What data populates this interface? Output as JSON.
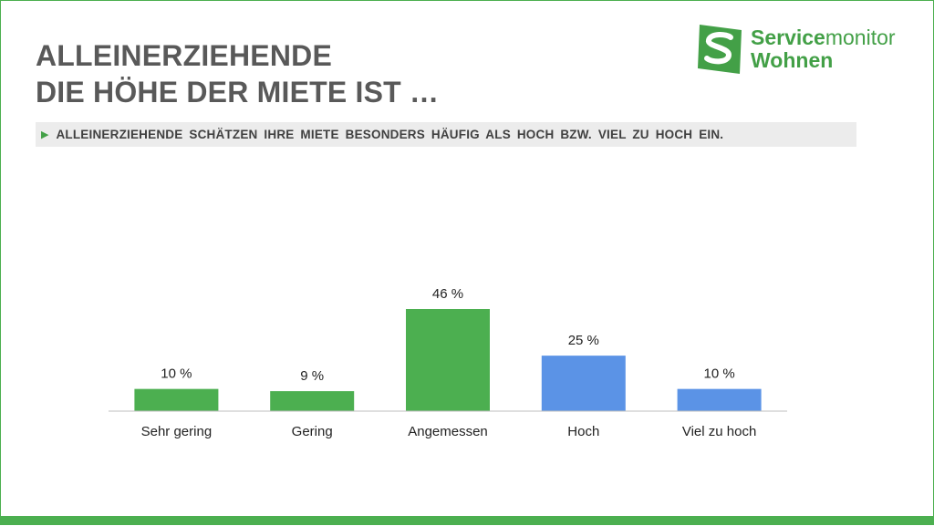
{
  "slide": {
    "title_line1": "ALLEINERZIEHENDE",
    "title_line2": "DIE HÖHE DER MIETE IST …",
    "subtitle": "ALLEINERZIEHENDE SCHÄTZEN IHRE MIETE BESONDERS HÄUFIG ALS HOCH BZW. VIEL ZU HOCH EIN.",
    "subtitle_icon": "triangle-right-icon"
  },
  "logo": {
    "word_bold": "Service",
    "word_light": "monitor",
    "word_line2": "Wohnen",
    "mark": "s-logo-icon",
    "color": "#43a047"
  },
  "chart_data": {
    "type": "bar",
    "categories": [
      "Sehr gering",
      "Gering",
      "Angemessen",
      "Hoch",
      "Viel zu hoch"
    ],
    "values": [
      10,
      9,
      46,
      25,
      10
    ],
    "data_labels": [
      "10 %",
      "9 %",
      "46 %",
      "25 %",
      "10 %"
    ],
    "colors": [
      "#4caf50",
      "#4caf50",
      "#4caf50",
      "#5b93e6",
      "#5b93e6"
    ],
    "ylim": [
      0,
      50
    ],
    "grid": false,
    "legend": "none"
  }
}
